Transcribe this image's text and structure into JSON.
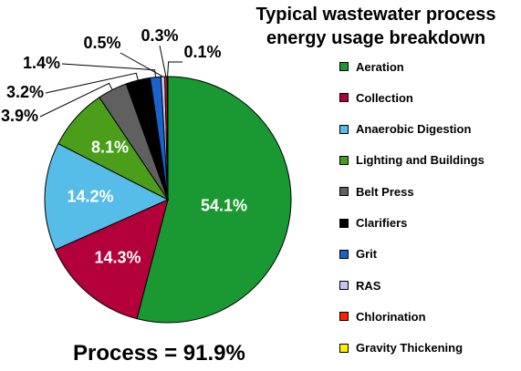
{
  "chart_data": {
    "type": "pie",
    "title_lines": [
      "Typical wastewater process",
      "energy usage breakdown"
    ],
    "categories": [
      "Aeration",
      "Collection",
      "Anaerobic Digestion",
      "Lighting and Buildings",
      "Belt Press",
      "Clarifiers",
      "Grit",
      "RAS",
      "Chlorination",
      "Gravity Thickening"
    ],
    "values": [
      54.1,
      14.3,
      14.2,
      8.1,
      3.9,
      3.2,
      1.4,
      0.5,
      0.3,
      0.1
    ],
    "labels": [
      "54.1%",
      "14.3%",
      "14.2%",
      "8.1%",
      "3.9%",
      "3.2%",
      "1.4%",
      "0.5%",
      "0.3%",
      "0.1%"
    ],
    "colors": [
      "#1a9933",
      "#b3003b",
      "#55bde8",
      "#4a9e1a",
      "#606060",
      "#000000",
      "#1a63c9",
      "#c5c5f5",
      "#ff2200",
      "#ffee00"
    ],
    "legend_position": "right",
    "footer": "Process = 91.9%"
  }
}
